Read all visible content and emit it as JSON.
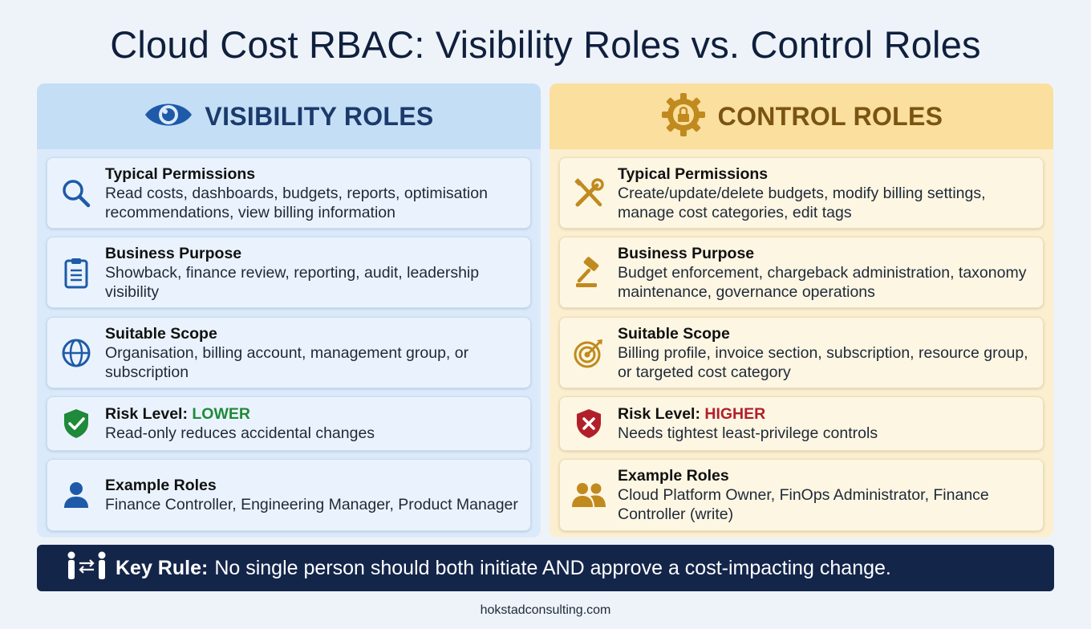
{
  "title": "Cloud Cost RBAC: Visibility Roles vs. Control Roles",
  "colors": {
    "visibility_accent": "#1e5aa8",
    "control_accent": "#c08a1e",
    "low": "#1f8a3a",
    "high": "#b1202a",
    "key_rule_bg": "#14254a"
  },
  "visibility": {
    "header": "VISIBILITY ROLES",
    "header_icon": "eye-icon",
    "cards": [
      {
        "icon": "search-icon",
        "title": "Typical Permissions",
        "body": "Read costs, dashboards, budgets, reports, optimisation recommendations, view billing information"
      },
      {
        "icon": "clipboard-icon",
        "title": "Business Purpose",
        "body": "Showback, finance review, reporting, audit, leadership visibility"
      },
      {
        "icon": "globe-icon",
        "title": "Suitable Scope",
        "body": "Organisation, billing account, management group, or subscription"
      },
      {
        "icon": "shield-check-icon",
        "title": "Risk Level: ",
        "risk": "LOWER",
        "body": "Read-only reduces accidental changes"
      },
      {
        "icon": "user-icon",
        "title": "Example Roles",
        "body": "Finance Controller, Engineering Manager, Product Manager"
      }
    ]
  },
  "control": {
    "header": "CONTROL ROLES",
    "header_icon": "gear-lock-icon",
    "cards": [
      {
        "icon": "tools-icon",
        "title": "Typical Permissions",
        "body": "Create/update/delete budgets, modify billing settings, manage cost categories, edit tags"
      },
      {
        "icon": "gavel-icon",
        "title": "Business Purpose",
        "body": "Budget enforcement, chargeback administration, taxonomy maintenance, governance operations"
      },
      {
        "icon": "target-icon",
        "title": "Suitable Scope",
        "body": "Billing profile, invoice section, subscription, resource group, or targeted cost category"
      },
      {
        "icon": "shield-x-icon",
        "title": "Risk Level: ",
        "risk": "HIGHER",
        "body": "Needs tightest least-privilege controls"
      },
      {
        "icon": "users-icon",
        "title": "Example Roles",
        "body": "Cloud Platform Owner, FinOps Administrator, Finance Controller (write)"
      }
    ]
  },
  "key_rule": {
    "icon": "separation-of-duties-icon",
    "label": "Key Rule:",
    "text": "No single person should both initiate AND approve a cost-impacting change."
  },
  "footer": "hokstadconsulting.com"
}
